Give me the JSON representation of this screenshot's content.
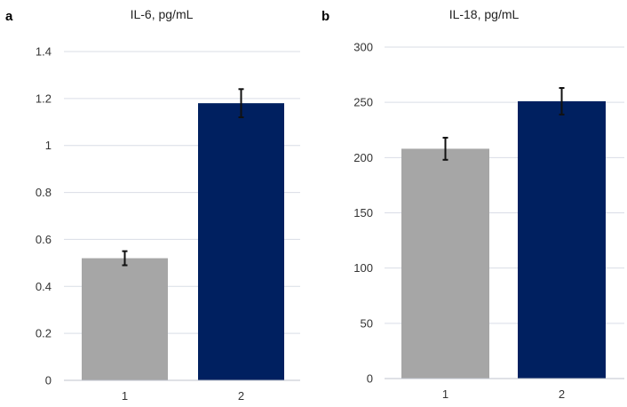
{
  "chart_data": [
    {
      "type": "bar",
      "panel": "a",
      "title": "IL-6, pg/mL",
      "categories": [
        "1",
        "2"
      ],
      "values": [
        0.52,
        1.18
      ],
      "error": [
        0.03,
        0.06
      ],
      "colors": [
        "#a6a6a6",
        "#002060"
      ],
      "ylim": [
        0,
        1.4
      ],
      "yticks": [
        0,
        0.2,
        0.4,
        0.6,
        0.8,
        1,
        1.2,
        1.4
      ],
      "ytick_labels": [
        "0",
        "0.2",
        "0.4",
        "0.6",
        "0.8",
        "1",
        "1.2",
        "1.4"
      ],
      "grid": true,
      "legend": "none"
    },
    {
      "type": "bar",
      "panel": "b",
      "title": "IL-18, pg/mL",
      "categories": [
        "1",
        "2"
      ],
      "values": [
        208,
        251
      ],
      "error": [
        10,
        12
      ],
      "colors": [
        "#a6a6a6",
        "#002060"
      ],
      "ylim": [
        0,
        300
      ],
      "yticks": [
        0,
        50,
        100,
        150,
        200,
        250,
        300
      ],
      "ytick_labels": [
        "0",
        "50",
        "100",
        "150",
        "200",
        "250",
        "300"
      ],
      "grid": true,
      "legend": "none"
    }
  ]
}
